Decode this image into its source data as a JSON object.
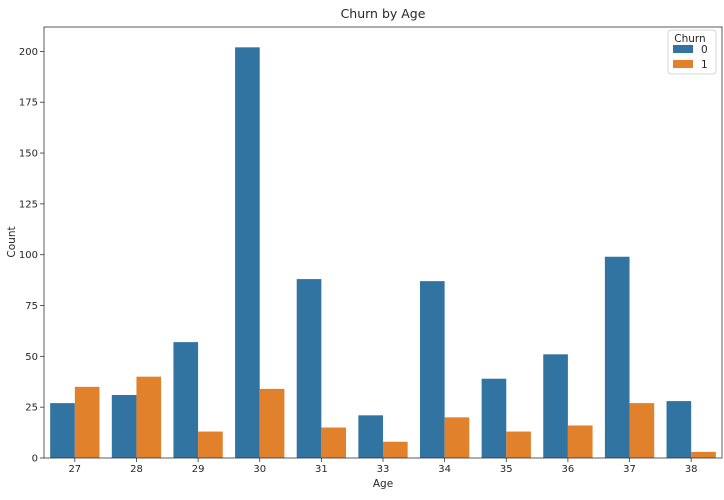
{
  "chart_data": {
    "type": "bar",
    "title": "Churn by Age",
    "xlabel": "Age",
    "ylabel": "Count",
    "categories": [
      "27",
      "28",
      "29",
      "30",
      "31",
      "33",
      "34",
      "35",
      "36",
      "37",
      "38"
    ],
    "series": [
      {
        "name": "0",
        "color": "#3274a1",
        "values": [
          27,
          31,
          57,
          202,
          88,
          21,
          87,
          39,
          51,
          99,
          28
        ]
      },
      {
        "name": "1",
        "color": "#e1812c",
        "values": [
          35,
          40,
          13,
          34,
          15,
          8,
          20,
          13,
          16,
          27,
          3
        ]
      }
    ],
    "ylim": [
      0,
      212
    ],
    "yticks": [
      0,
      25,
      50,
      75,
      100,
      125,
      150,
      175,
      200
    ],
    "grid": false,
    "legend": {
      "title": "Churn",
      "position": "top-right"
    }
  }
}
